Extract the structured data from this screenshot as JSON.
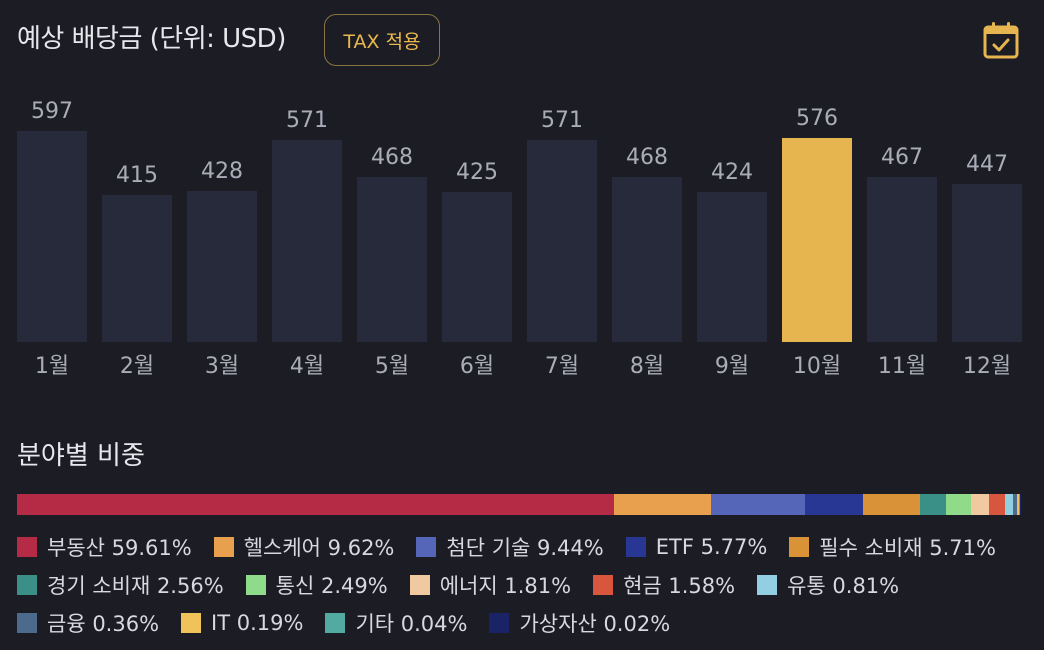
{
  "header": {
    "title": "예상 배당금 (단위: USD)",
    "tax_button": "TAX 적용",
    "calendar_icon": "calendar-check-icon"
  },
  "chart_data": {
    "type": "bar",
    "categories": [
      "1월",
      "2월",
      "3월",
      "4월",
      "5월",
      "6월",
      "7월",
      "8월",
      "9월",
      "10월",
      "11월",
      "12월"
    ],
    "values": [
      597,
      415,
      428,
      571,
      468,
      425,
      571,
      468,
      424,
      576,
      467,
      447
    ],
    "highlighted_index": 9,
    "bar_color": "#262a3b",
    "highlight_color": "#e6b54f",
    "ylim": [
      0,
      597
    ]
  },
  "sector": {
    "title": "분야별 비중",
    "items": [
      {
        "label": "부동산 59.61%",
        "value": 59.61,
        "color": "#b52a45"
      },
      {
        "label": "헬스케어 9.62%",
        "value": 9.62,
        "color": "#e9a04e"
      },
      {
        "label": "첨단 기술 9.44%",
        "value": 9.44,
        "color": "#5566b8"
      },
      {
        "label": "ETF 5.77%",
        "value": 5.77,
        "color": "#283694"
      },
      {
        "label": "필수 소비재 5.71%",
        "value": 5.71,
        "color": "#d99237"
      },
      {
        "label": "경기 소비재 2.56%",
        "value": 2.56,
        "color": "#3a9086"
      },
      {
        "label": "통신 2.49%",
        "value": 2.49,
        "color": "#8fdb8a"
      },
      {
        "label": "에너지 1.81%",
        "value": 1.81,
        "color": "#f0c9a0"
      },
      {
        "label": "현금 1.58%",
        "value": 1.58,
        "color": "#d8553e"
      },
      {
        "label": "유통 0.81%",
        "value": 0.81,
        "color": "#93cfe3"
      },
      {
        "label": "금융 0.36%",
        "value": 0.36,
        "color": "#4c6a8c"
      },
      {
        "label": "IT 0.19%",
        "value": 0.19,
        "color": "#f0c25a"
      },
      {
        "label": "기타 0.04%",
        "value": 0.04,
        "color": "#52aaa0"
      },
      {
        "label": "가상자산 0.02%",
        "value": 0.02,
        "color": "#1a2366"
      }
    ]
  }
}
